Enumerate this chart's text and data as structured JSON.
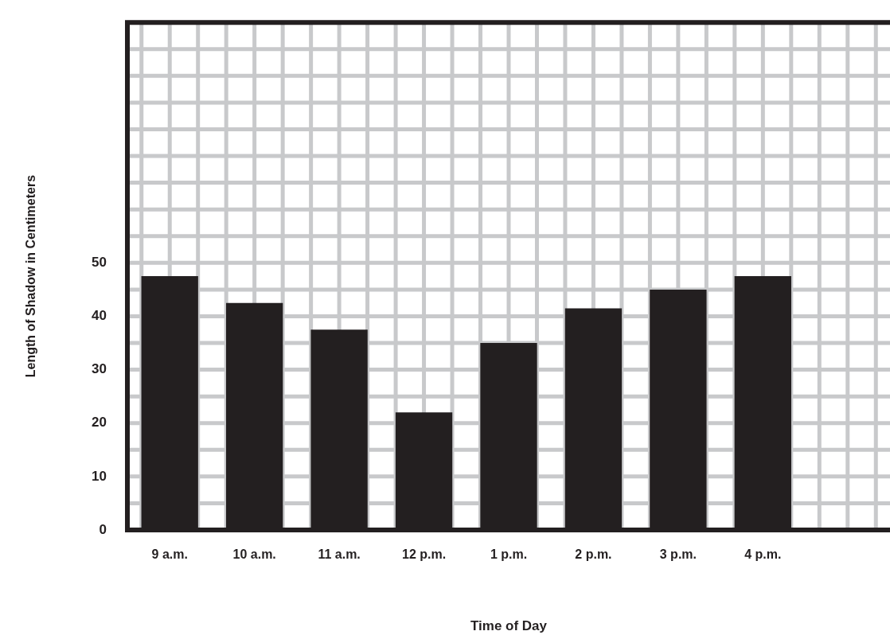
{
  "chart_data": {
    "type": "bar",
    "xlabel": "Time of Day",
    "ylabel": "Length of Shadow in Centimeters",
    "categories": [
      "9 a.m.",
      "10 a.m.",
      "11 a.m.",
      "12 p.m.",
      "1 p.m.",
      "2 p.m.",
      "3 p.m.",
      "4 p.m.",
      null
    ],
    "values": [
      47.5,
      42.5,
      37.5,
      22,
      35,
      41.5,
      45,
      47.5,
      null
    ],
    "color": "#231f20",
    "ylim": [
      0,
      95
    ],
    "yticks": [
      0,
      {
        "value": 5,
        "label": null
      },
      10,
      {
        "value": 15,
        "label": null
      },
      20,
      {
        "value": 25,
        "label": null
      },
      30,
      {
        "value": 35,
        "label": null
      },
      40,
      {
        "value": 45,
        "label": null
      },
      50,
      {
        "value": 55,
        "label": null
      },
      {
        "value": 60,
        "label": null
      },
      {
        "value": 65,
        "label": null
      },
      {
        "value": 70,
        "label": null
      },
      {
        "value": 75,
        "label": null
      },
      {
        "value": 80,
        "label": null
      },
      {
        "value": 85,
        "label": null
      },
      {
        "value": 90,
        "label": null
      },
      {
        "value": 95,
        "label": null
      }
    ],
    "grid": true
  }
}
